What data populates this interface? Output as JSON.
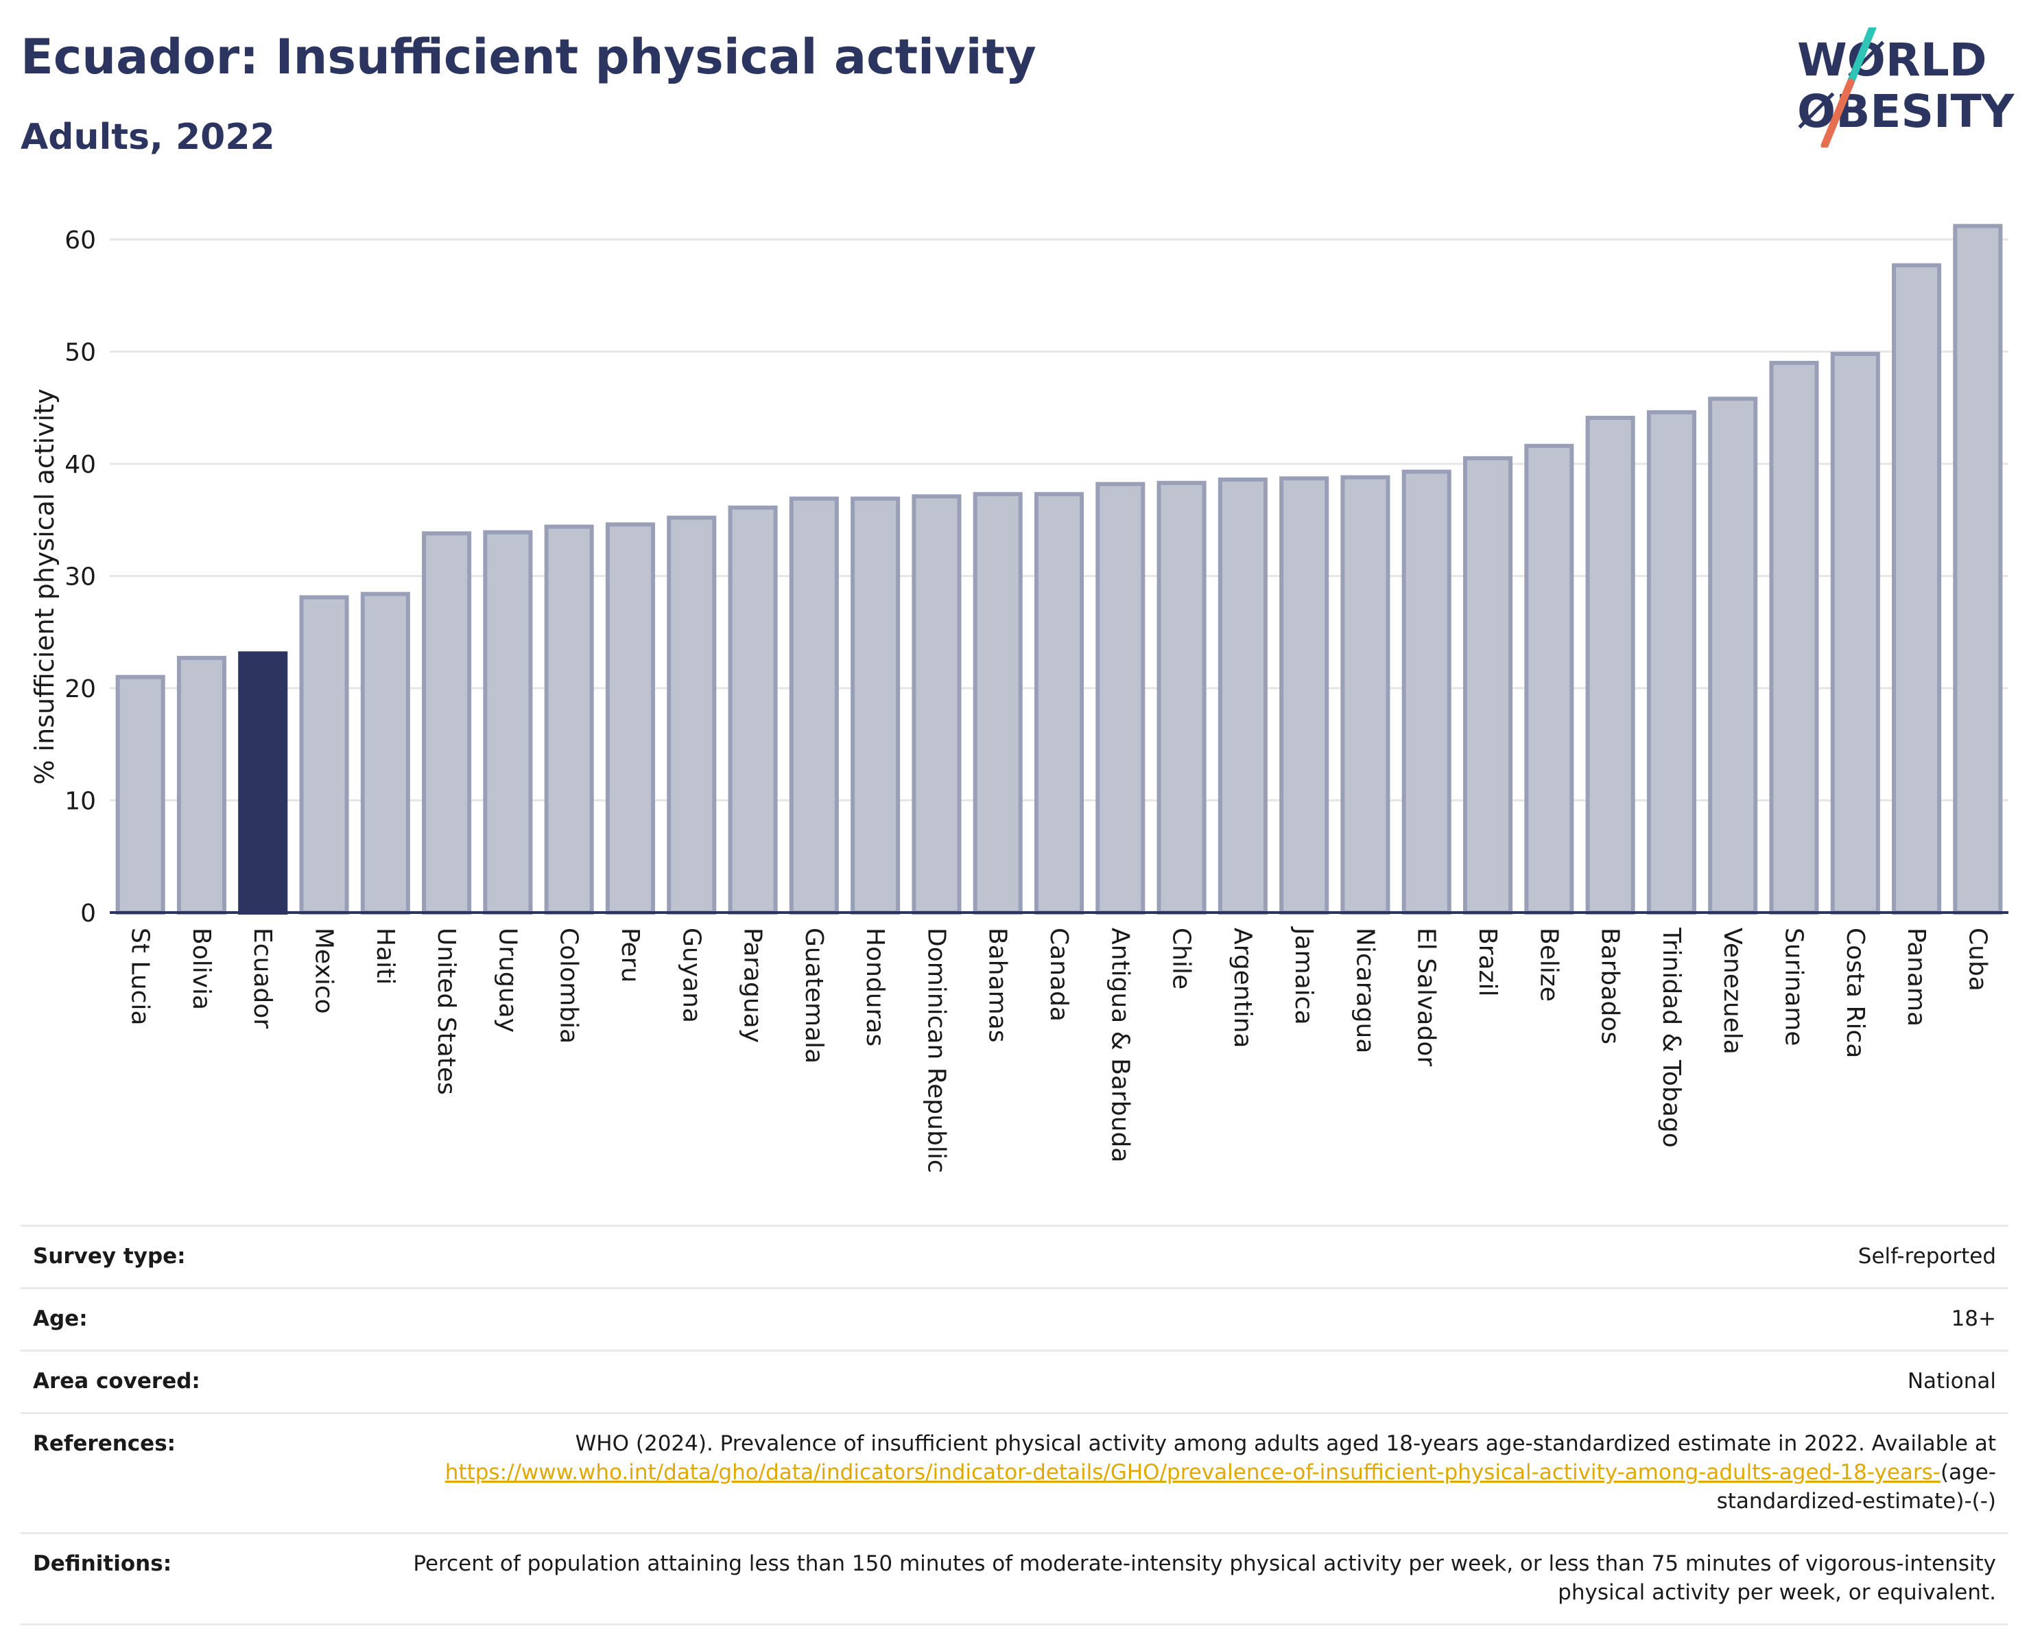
{
  "header": {
    "title": "Ecuador: Insufficient physical activity",
    "subtitle": "Adults, 2022"
  },
  "logo": {
    "line1": "WØRLD",
    "line2": "ØBESITY",
    "color_text": "#2b3560",
    "color_slash_top": "#2ec4b6",
    "color_slash_bottom": "#e76f51"
  },
  "chart_data": {
    "type": "bar",
    "ylabel": "% insufficient physical activity",
    "xlabel": "",
    "ylim": [
      0,
      63
    ],
    "yticks": [
      0,
      10,
      20,
      30,
      40,
      50,
      60
    ],
    "grid": true,
    "highlight": "Ecuador",
    "highlight_color": "#2b3560",
    "bar_color": "#bfc2cf",
    "bar_edge_color": "#9a9fb8",
    "categories": [
      "St Lucia",
      "Bolivia",
      "Ecuador",
      "Mexico",
      "Haiti",
      "United States",
      "Uruguay",
      "Colombia",
      "Peru",
      "Guyana",
      "Paraguay",
      "Guatemala",
      "Honduras",
      "Dominican Republic",
      "Bahamas",
      "Canada",
      "Antigua & Barbuda",
      "Chile",
      "Argentina",
      "Jamaica",
      "Nicaragua",
      "El Salvador",
      "Brazil",
      "Belize",
      "Barbados",
      "Trinidad & Tobago",
      "Venezuela",
      "Suriname",
      "Costa Rica",
      "Panama",
      "Cuba"
    ],
    "values": [
      21.0,
      22.7,
      23.1,
      28.1,
      28.4,
      33.8,
      33.9,
      34.4,
      34.6,
      35.2,
      36.1,
      36.9,
      36.9,
      37.1,
      37.3,
      37.3,
      38.2,
      38.3,
      38.6,
      38.7,
      38.8,
      39.3,
      40.5,
      41.6,
      44.1,
      44.6,
      45.8,
      49.0,
      49.8,
      57.7,
      61.2
    ]
  },
  "meta": [
    {
      "label": "Survey type:",
      "value": "Self-reported"
    },
    {
      "label": "Age:",
      "value": "18+"
    },
    {
      "label": "Area covered:",
      "value": "National"
    },
    {
      "label": "References:",
      "value": "WHO (2024). Prevalence of insufficient physical activity among adults aged 18-years age-standardized estimate in 2022. Available at",
      "link": "https://www.who.int/data/gho/data/indicators/indicator-details/GHO/prevalence-of-insufficient-physical-activity-among-adults-aged-18-years-",
      "tail": "(age-standardized-estimate)-(-)"
    },
    {
      "label": "Definitions:",
      "value": "Percent of population attaining less than 150 minutes of moderate-intensity physical activity per week, or less than 75 minutes of vigorous-intensity physical activity per week, or equivalent."
    }
  ]
}
